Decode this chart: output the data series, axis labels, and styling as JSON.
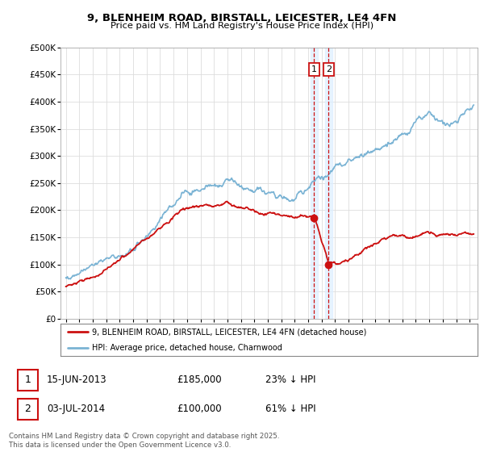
{
  "title1": "9, BLENHEIM ROAD, BIRSTALL, LEICESTER, LE4 4FN",
  "title2": "Price paid vs. HM Land Registry's House Price Index (HPI)",
  "ylim": [
    0,
    500000
  ],
  "yticks": [
    0,
    50000,
    100000,
    150000,
    200000,
    250000,
    300000,
    350000,
    400000,
    450000,
    500000
  ],
  "ytick_labels": [
    "£0",
    "£50K",
    "£100K",
    "£150K",
    "£200K",
    "£250K",
    "£300K",
    "£350K",
    "£400K",
    "£450K",
    "£500K"
  ],
  "xlim_start": 1994.6,
  "xlim_end": 2025.6,
  "sale1_year": 2013.45,
  "sale1_price": 185000,
  "sale2_year": 2014.52,
  "sale2_price": 100000,
  "hpi_color": "#7ab3d4",
  "price_color": "#cc1111",
  "vline_color": "#cc1111",
  "vband_color": "#ddeeff",
  "legend1_label": "9, BLENHEIM ROAD, BIRSTALL, LEICESTER, LE4 4FN (detached house)",
  "legend2_label": "HPI: Average price, detached house, Charnwood",
  "footnote": "Contains HM Land Registry data © Crown copyright and database right 2025.\nThis data is licensed under the Open Government Licence v3.0.",
  "background_color": "#ffffff",
  "grid_color": "#dddddd"
}
